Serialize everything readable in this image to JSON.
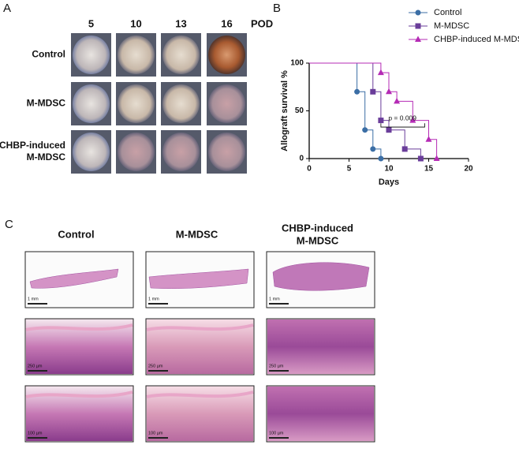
{
  "chart_data": {
    "type": "step",
    "x_label": "Days",
    "y_label": "Allograft survival %",
    "xlim": [
      0,
      20
    ],
    "xticks": [
      0,
      5,
      10,
      15,
      20
    ],
    "ylim": [
      0,
      100
    ],
    "yticks": [
      0,
      50,
      100
    ],
    "annotation": "p = 0.009",
    "legend": "top-right",
    "series": [
      {
        "name": "Control",
        "color": "#3b6ea5",
        "marker": "circle",
        "x": [
          0,
          6,
          7,
          8,
          9
        ],
        "values": [
          100,
          70,
          30,
          10,
          0
        ]
      },
      {
        "name": "M-MDSC",
        "color": "#6a3d9a",
        "marker": "square",
        "x": [
          0,
          8,
          9,
          10,
          12,
          14
        ],
        "values": [
          100,
          70,
          40,
          30,
          10,
          0
        ]
      },
      {
        "name": "CHBP-induced M-MDSC",
        "color": "#b52bb5",
        "marker": "triangle",
        "x": [
          0,
          9,
          10,
          11,
          13,
          15,
          16
        ],
        "values": [
          100,
          90,
          70,
          60,
          40,
          20,
          0
        ]
      }
    ]
  },
  "panel_labels": [
    "A",
    "B",
    "C"
  ],
  "panel_a": {
    "columns": [
      "5",
      "10",
      "13",
      "16"
    ],
    "unit": "POD",
    "rows": [
      [
        "Control"
      ],
      [
        "M-MDSC"
      ],
      [
        "CHBP-induced",
        "M-MDSC"
      ]
    ]
  },
  "panel_c": {
    "columns": [
      [
        "Control"
      ],
      [
        "M-MDSC"
      ],
      [
        "CHBP-induced",
        "M-MDSC"
      ]
    ],
    "scale_bars": [
      "1 mm",
      "250 µm",
      "100 µm"
    ]
  }
}
